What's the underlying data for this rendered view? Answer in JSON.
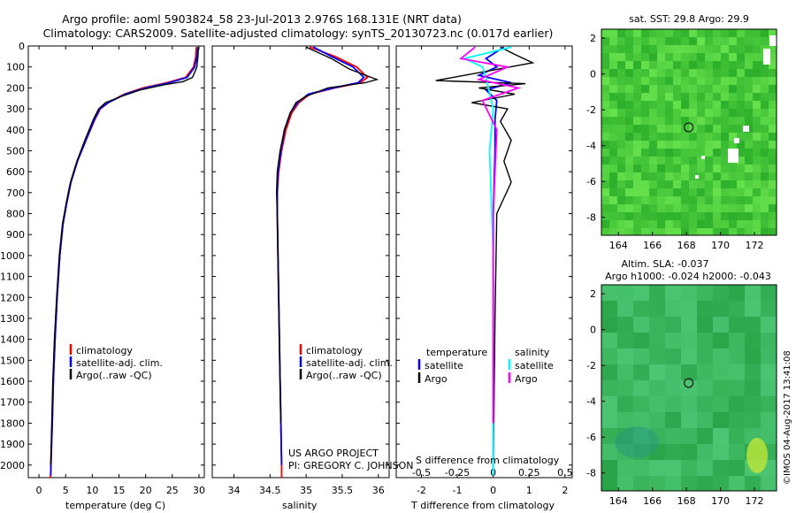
{
  "header": {
    "line1": "Argo profile: aoml 5903824_58 23-Jul-2013 2.976S 168.131E (NRT data)",
    "line2": "Climatology: CARS2009. Satellite-adjusted climatology: synTS_20130723.nc (0.017d earlier)"
  },
  "colors": {
    "climatology": "#ff0000",
    "satellite": "#0000ff",
    "argo": "#000000",
    "t_satellite": "#0000ff",
    "s_satellite": "#00ffff",
    "s_argo": "#ff00ff",
    "map_sst": "#3fc83a",
    "map_sla": "#36b95a"
  },
  "chart_data": [
    {
      "type": "line",
      "name": "temperature",
      "xlabel": "temperature (deg C)",
      "ylabel": "depth",
      "xlim": [
        -2,
        31
      ],
      "ylim": [
        2060,
        0
      ],
      "xticks": [
        0,
        5,
        10,
        15,
        20,
        25,
        30
      ],
      "xtick_labels": [
        "0",
        "5",
        "10",
        "15",
        "20",
        "25",
        "30"
      ],
      "yticks": [
        0,
        100,
        200,
        300,
        400,
        500,
        600,
        700,
        800,
        900,
        1000,
        1100,
        1200,
        1300,
        1400,
        1500,
        1600,
        1700,
        1800,
        1900,
        2000
      ],
      "ytick_labels": [
        "0",
        "100",
        "200",
        "300",
        "400",
        "500",
        "600",
        "700",
        "800",
        "900",
        "1000",
        "1100",
        "1200",
        "1300",
        "1400",
        "1500",
        "1600",
        "1700",
        "1800",
        "1900",
        "2000"
      ],
      "legend": [
        "climatology",
        "satellite-adj. clim.",
        "Argo(..raw -QC)"
      ],
      "legend_position": "lower-right",
      "series": [
        {
          "name": "climatology",
          "color_key": "climatology",
          "x": [
            29.5,
            29.4,
            29.0,
            27.5,
            24.0,
            19.5,
            16.0,
            13.0,
            11.5,
            10.5,
            8.8,
            7.2,
            6.0,
            5.2,
            4.5,
            3.9,
            3.4,
            3.0,
            2.7,
            2.5,
            2.3,
            2.2,
            2.1
          ],
          "y": [
            5,
            50,
            100,
            150,
            175,
            200,
            230,
            270,
            300,
            350,
            450,
            550,
            650,
            750,
            850,
            1000,
            1200,
            1400,
            1600,
            1800,
            1950,
            2050,
            2060
          ]
        },
        {
          "name": "satellite-adj. clim.",
          "color_key": "satellite",
          "x": [
            29.8,
            29.6,
            29.2,
            27.8,
            24.5,
            20.0,
            16.2,
            13.0,
            11.4,
            10.4,
            8.8,
            7.2,
            6.0,
            5.2,
            4.5,
            3.9,
            3.4,
            3.0,
            2.7,
            2.5,
            2.3,
            2.2
          ],
          "y": [
            5,
            50,
            100,
            150,
            175,
            200,
            230,
            270,
            300,
            350,
            450,
            550,
            650,
            750,
            850,
            1000,
            1200,
            1400,
            1600,
            1800,
            1950,
            2050
          ]
        },
        {
          "name": "Argo(..raw -QC)",
          "color_key": "argo",
          "x": [
            29.9,
            29.8,
            29.6,
            28.8,
            27.0,
            23.5,
            19.0,
            15.5,
            12.5,
            11.2,
            10.2,
            8.6,
            7.1,
            5.9,
            5.1,
            4.4,
            3.8,
            3.3,
            2.9,
            2.6,
            2.4,
            2.2
          ],
          "y": [
            5,
            50,
            100,
            150,
            170,
            185,
            210,
            240,
            270,
            300,
            350,
            450,
            550,
            650,
            750,
            850,
            1000,
            1200,
            1400,
            1600,
            1800,
            2000
          ]
        }
      ]
    },
    {
      "type": "line",
      "name": "salinity",
      "xlabel": "salinity",
      "xlim": [
        33.7,
        36.15
      ],
      "ylim": [
        2060,
        0
      ],
      "xticks": [
        34,
        34.5,
        35,
        35.5,
        36
      ],
      "xtick_labels": [
        "34",
        "34.5",
        "35",
        "35.5",
        "36"
      ],
      "legend": [
        "climatology",
        "satellite-adj. clim.",
        "Argo(..raw -QC)"
      ],
      "legend_position": "lower-right",
      "annotations": [
        "US ARGO PROJECT",
        "PI: GREGORY C. JOHNSON"
      ],
      "series": [
        {
          "name": "climatology",
          "color_key": "climatology",
          "x": [
            35.05,
            35.4,
            35.7,
            35.85,
            35.75,
            35.4,
            35.05,
            34.9,
            34.8,
            34.72,
            34.66,
            34.62,
            34.6,
            34.6,
            34.61,
            34.62,
            34.63,
            34.64,
            34.65,
            34.66,
            34.66
          ],
          "y": [
            5,
            50,
            100,
            150,
            175,
            200,
            230,
            270,
            320,
            400,
            500,
            600,
            700,
            800,
            1000,
            1200,
            1400,
            1600,
            1800,
            2000,
            2060
          ]
        },
        {
          "name": "satellite-adj. clim.",
          "color_key": "satellite",
          "x": [
            35.1,
            35.35,
            35.65,
            35.8,
            35.72,
            35.38,
            35.03,
            34.88,
            34.78,
            34.7,
            34.65,
            34.61,
            34.6,
            34.6,
            34.61,
            34.62,
            34.63,
            34.64,
            34.65,
            34.66
          ],
          "y": [
            5,
            50,
            100,
            150,
            175,
            200,
            230,
            270,
            320,
            400,
            500,
            600,
            700,
            800,
            1000,
            1200,
            1400,
            1600,
            1800,
            2000
          ]
        },
        {
          "name": "Argo(..raw -QC)",
          "color_key": "argo",
          "x": [
            35.0,
            35.35,
            35.6,
            35.98,
            35.82,
            35.3,
            35.0,
            34.86,
            34.78,
            34.7,
            34.64,
            34.6,
            34.59,
            34.6,
            34.61,
            34.62,
            34.63,
            34.64,
            34.65
          ],
          "y": [
            5,
            60,
            110,
            160,
            175,
            200,
            240,
            270,
            320,
            400,
            500,
            600,
            700,
            800,
            1000,
            1200,
            1400,
            1600,
            1800
          ]
        }
      ]
    },
    {
      "type": "line",
      "name": "difference-from-climatology",
      "xlabel": "T difference from climatology",
      "xlabel_top": "S difference from climatology",
      "xlim": [
        -2.7,
        2.2
      ],
      "ylim": [
        2060,
        0
      ],
      "xticks": [
        -2,
        -1,
        0,
        1,
        2
      ],
      "xtick_labels": [
        "-2",
        "-1",
        "0",
        "1",
        "2"
      ],
      "s_xticks_at_t": [
        -2,
        -1,
        0,
        1,
        2
      ],
      "s_xtick_labels": [
        "-0.5",
        "-0.25",
        "0",
        "0.25",
        "0.5"
      ],
      "legend_temperature_title": "temperature",
      "legend_salinity_title": "salinity",
      "legend": [
        "satellite",
        "Argo",
        "satellite",
        "Argo"
      ],
      "legend_position": "lower-center",
      "series": [
        {
          "name": "T satellite",
          "color_key": "t_satellite",
          "x": [
            0.3,
            -0.2,
            0.1,
            -0.4,
            0.5,
            -0.2,
            0.1,
            0.05,
            0.05,
            0.0,
            0.0,
            0.0
          ],
          "y": [
            5,
            60,
            100,
            140,
            175,
            210,
            260,
            350,
            500,
            800,
            1300,
            2050
          ]
        },
        {
          "name": "T Argo",
          "color_key": "argo",
          "x": [
            0.2,
            0.6,
            1.1,
            -1.6,
            0.9,
            -0.4,
            0.6,
            -0.6,
            0.4,
            0.2,
            0.5,
            0.3,
            0.5,
            0.1,
            0.05,
            0.0
          ],
          "y": [
            5,
            40,
            80,
            165,
            180,
            200,
            230,
            270,
            300,
            360,
            450,
            550,
            650,
            800,
            1300,
            2030
          ]
        },
        {
          "name": "S satellite",
          "color_key": "s_satellite",
          "x": [
            0.5,
            -0.8,
            -0.3,
            -0.2,
            0.0,
            -0.1,
            0.0,
            0.0
          ],
          "y": [
            5,
            60,
            100,
            150,
            300,
            500,
            1000,
            2050
          ]
        },
        {
          "name": "S Argo",
          "color_key": "s_argo",
          "x": [
            -0.5,
            -0.9,
            0.4,
            -0.4,
            0.7,
            -0.3,
            0.1,
            0.0,
            0.0
          ],
          "y": [
            5,
            60,
            100,
            160,
            200,
            260,
            400,
            800,
            1800
          ]
        }
      ]
    },
    {
      "type": "heatmap",
      "name": "sst-map",
      "title": "sat. SST: 29.8 Argo: 29.9",
      "xlim": [
        163,
        173.3
      ],
      "ylim": [
        -9,
        2.5
      ],
      "xticks": [
        164,
        166,
        168,
        170,
        172
      ],
      "xtick_labels": [
        "164",
        "166",
        "168",
        "170",
        "172"
      ],
      "yticks": [
        2,
        0,
        -2,
        -4,
        -6,
        -8
      ],
      "ytick_labels": [
        "2",
        "0",
        "-2",
        "-4",
        "-6",
        "-8"
      ],
      "marker": {
        "lon": 168.131,
        "lat": -2.976
      }
    },
    {
      "type": "heatmap",
      "name": "sla-map",
      "title": "Altim. SLA: -0.037",
      "subtitle": "Argo h1000: -0.024 h2000: -0.043",
      "xlim": [
        163,
        173.3
      ],
      "ylim": [
        -9,
        2.5
      ],
      "xticks": [
        164,
        166,
        168,
        170,
        172
      ],
      "xtick_labels": [
        "164",
        "166",
        "168",
        "170",
        "172"
      ],
      "yticks": [
        2,
        0,
        -2,
        -4,
        -6,
        -8
      ],
      "ytick_labels": [
        "2",
        "0",
        "-2",
        "-4",
        "-6",
        "-8"
      ],
      "marker": {
        "lon": 168.131,
        "lat": -2.976
      }
    }
  ],
  "footer": {
    "credit": "©IMOS 04-Aug-2017 13:41:08"
  }
}
